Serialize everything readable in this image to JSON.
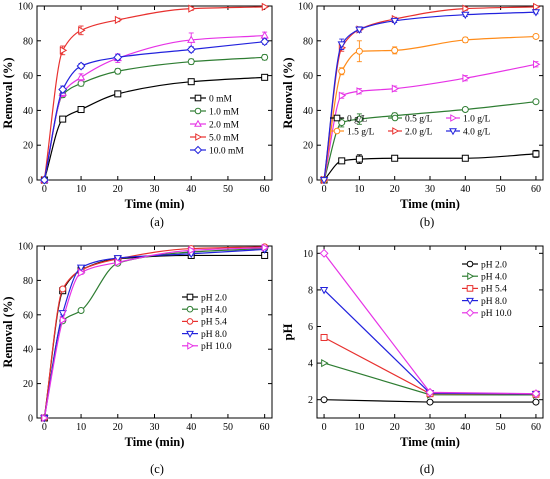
{
  "chart_data": [
    {
      "type": "line",
      "panel_label": "(a)",
      "xlabel": "Time (min)",
      "ylabel": "Removal (%)",
      "xlim": [
        -2,
        62
      ],
      "ylim": [
        0,
        100
      ],
      "xticks": [
        0,
        10,
        20,
        30,
        40,
        50,
        60
      ],
      "yticks": [
        0,
        20,
        40,
        60,
        80,
        100
      ],
      "legend_position": "bottom-right",
      "x": [
        0,
        5,
        10,
        20,
        40,
        60
      ],
      "series": [
        {
          "name": "0 mM",
          "color": "#000000",
          "marker": "square",
          "values": [
            0,
            35,
            40.5,
            49.5,
            56.5,
            59
          ],
          "errors": [
            0,
            1.2,
            1.2,
            1.2,
            1.2,
            1.2
          ]
        },
        {
          "name": "1.0 mM",
          "color": "#2e7d32",
          "marker": "circle",
          "values": [
            0,
            49,
            55.5,
            62.5,
            68,
            70.5
          ],
          "errors": [
            0,
            1.5,
            1.5,
            1.5,
            1.5,
            1.5
          ]
        },
        {
          "name": "2.0 mM",
          "color": "#e633e6",
          "marker": "triangle-up",
          "values": [
            0,
            50,
            59,
            70,
            80.5,
            83
          ],
          "errors": [
            0,
            2,
            2,
            2.5,
            4,
            2
          ]
        },
        {
          "name": "5.0 mM",
          "color": "#e8312f",
          "marker": "triangle-right",
          "values": [
            0,
            74.5,
            86,
            92,
            98.5,
            99.5
          ],
          "errors": [
            0,
            2.5,
            2.5,
            1,
            1,
            0.5
          ]
        },
        {
          "name": "10.0 mM",
          "color": "#2222dd",
          "marker": "diamond",
          "values": [
            0,
            52,
            65.5,
            70.5,
            75,
            79.5
          ],
          "errors": [
            0,
            2,
            1.5,
            1.5,
            1.5,
            1.5
          ]
        }
      ]
    },
    {
      "type": "line",
      "panel_label": "(b)",
      "xlabel": "Time (min)",
      "ylabel": "Removal (%)",
      "xlim": [
        -2,
        62
      ],
      "ylim": [
        0,
        100
      ],
      "xticks": [
        0,
        10,
        20,
        30,
        40,
        50,
        60
      ],
      "yticks": [
        0,
        20,
        40,
        60,
        80,
        100
      ],
      "legend_position": "bottom",
      "x": [
        0,
        5,
        10,
        20,
        40,
        60
      ],
      "series": [
        {
          "name": "0 g/L",
          "color": "#000000",
          "marker": "square",
          "values": [
            0,
            11,
            12,
            12.5,
            12.5,
            15
          ],
          "errors": [
            0,
            1.5,
            2.5,
            1.5,
            1.5,
            2
          ]
        },
        {
          "name": "0.5 g/L",
          "color": "#2e7d32",
          "marker": "circle",
          "values": [
            0,
            33,
            35,
            37,
            40.5,
            45
          ],
          "errors": [
            0,
            2.5,
            3,
            1.5,
            1,
            1
          ]
        },
        {
          "name": "1.0 g/L",
          "color": "#e633e6",
          "marker": "triangle-right",
          "values": [
            0,
            48.5,
            51,
            52.5,
            58.5,
            66.5
          ],
          "errors": [
            0,
            1.5,
            1.5,
            1.5,
            1.5,
            1.5
          ]
        },
        {
          "name": "1.5 g/L",
          "color": "#ff8c1a",
          "marker": "circle",
          "values": [
            0,
            62.5,
            74,
            74.5,
            80.5,
            82.5
          ],
          "errors": [
            0,
            2,
            6,
            2,
            1.5,
            1
          ]
        },
        {
          "name": "2.0 g/L",
          "color": "#e8312f",
          "marker": "triangle-right",
          "values": [
            0,
            76,
            86.5,
            92.5,
            98.5,
            99.5
          ],
          "errors": [
            0,
            2,
            1.5,
            1,
            1,
            0.5
          ]
        },
        {
          "name": "4.0 g/L",
          "color": "#2222dd",
          "marker": "triangle-down",
          "values": [
            0,
            78,
            86.5,
            91.5,
            95,
            96.5
          ],
          "errors": [
            0,
            3,
            1.5,
            1,
            1,
            1
          ]
        }
      ]
    },
    {
      "type": "line",
      "panel_label": "(c)",
      "xlabel": "Time (min)",
      "ylabel": "Removal (%)",
      "xlim": [
        -2,
        62
      ],
      "ylim": [
        0,
        100
      ],
      "xticks": [
        0,
        10,
        20,
        30,
        40,
        50,
        60
      ],
      "yticks": [
        0,
        20,
        40,
        60,
        80,
        100
      ],
      "legend_position": "right",
      "x": [
        0,
        5,
        10,
        20,
        40,
        60
      ],
      "series": [
        {
          "name": "pH 2.0",
          "color": "#000000",
          "marker": "square",
          "values": [
            0,
            74,
            86,
            92.5,
            94.5,
            94.5
          ],
          "errors": [
            0,
            1,
            1,
            1,
            1,
            1
          ]
        },
        {
          "name": "pH 4.0",
          "color": "#2e7d32",
          "marker": "circle",
          "values": [
            0,
            56.5,
            62.5,
            90,
            96.5,
            98.5
          ],
          "errors": [
            0,
            1,
            1,
            1,
            1,
            1
          ]
        },
        {
          "name": "pH 5.4",
          "color": "#e8312f",
          "marker": "circle",
          "values": [
            0,
            75,
            86,
            92.5,
            98.5,
            99.5
          ],
          "errors": [
            0,
            1,
            1,
            1,
            1,
            1
          ]
        },
        {
          "name": "pH 8.0",
          "color": "#2222dd",
          "marker": "triangle-down",
          "values": [
            0,
            61,
            87.5,
            93,
            95.5,
            98
          ],
          "errors": [
            0,
            1,
            1,
            1,
            1,
            1
          ]
        },
        {
          "name": "pH 10.0",
          "color": "#e633e6",
          "marker": "triangle-right",
          "values": [
            0,
            57,
            84.5,
            90.5,
            97.5,
            99
          ],
          "errors": [
            0,
            1,
            1,
            1,
            1,
            1
          ]
        }
      ]
    },
    {
      "type": "line",
      "panel_label": "(d)",
      "xlabel": "Time (min)",
      "ylabel": "pH",
      "xlim": [
        -2,
        62
      ],
      "ylim": [
        1,
        10.4
      ],
      "xticks": [
        0,
        10,
        20,
        30,
        40,
        50,
        60
      ],
      "yticks": [
        2,
        4,
        6,
        8,
        10
      ],
      "legend_position": "top-right",
      "x": [
        0,
        30,
        60
      ],
      "series": [
        {
          "name": "pH 2.0",
          "color": "#000000",
          "marker": "circle",
          "values": [
            2.0,
            1.87,
            1.87
          ]
        },
        {
          "name": "pH 4.0",
          "color": "#2e7d32",
          "marker": "triangle-right",
          "values": [
            4.0,
            2.27,
            2.26
          ]
        },
        {
          "name": "pH 5.4",
          "color": "#e8312f",
          "marker": "square",
          "values": [
            5.4,
            2.33,
            2.3
          ]
        },
        {
          "name": "pH 8.0",
          "color": "#2222dd",
          "marker": "triangle-down",
          "values": [
            8.0,
            2.36,
            2.31
          ]
        },
        {
          "name": "pH 10.0",
          "color": "#e633e6",
          "marker": "diamond",
          "values": [
            10.0,
            2.4,
            2.33
          ]
        }
      ]
    }
  ]
}
